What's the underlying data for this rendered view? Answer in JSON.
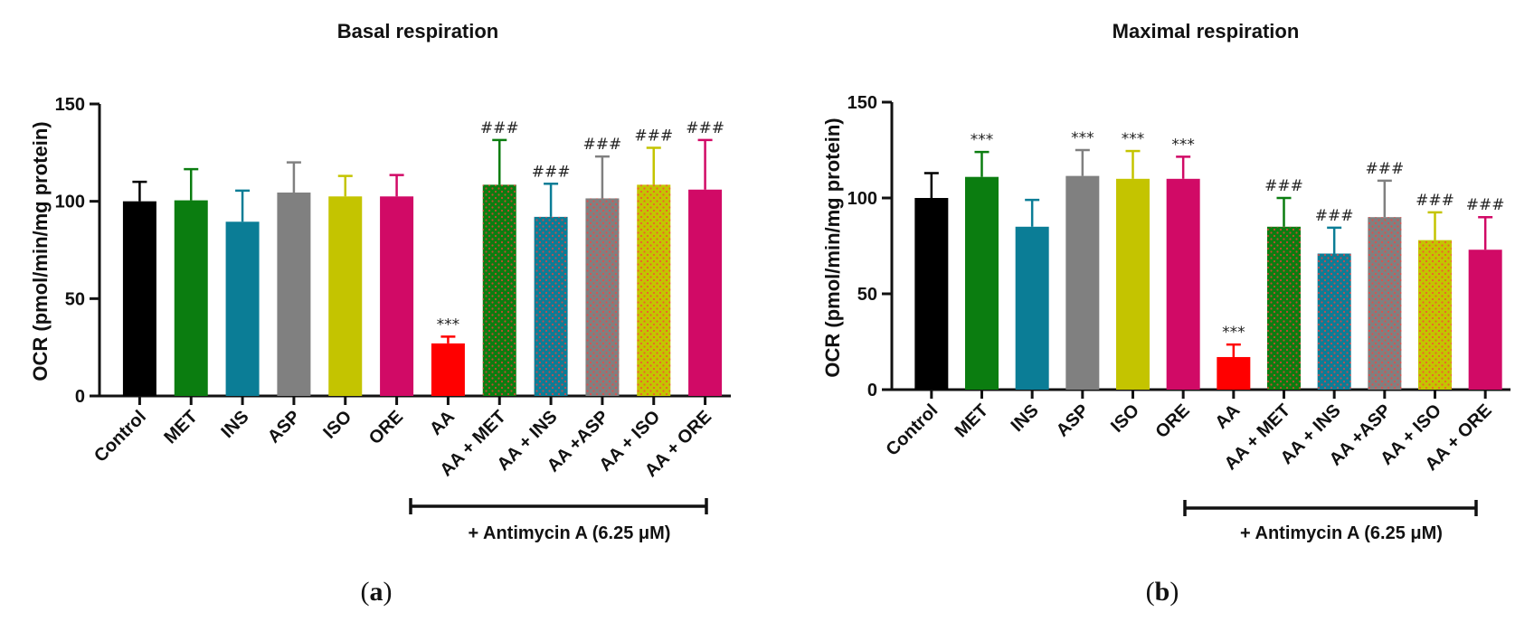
{
  "chart_data": [
    {
      "type": "bar",
      "title": "Basal respiration",
      "panel_label": "(a)",
      "panel_open": "(",
      "panel_letter": "a",
      "panel_close": ")",
      "ylabel": "OCR (pmol/min/mg protein)",
      "ylim": [
        0,
        150
      ],
      "yticks": [
        0,
        50,
        100,
        150
      ],
      "categories": [
        "Control",
        "MET",
        "INS",
        "ASP",
        "ISO",
        "ORE",
        "AA",
        "AA + MET",
        "AA + INS",
        "AA +ASP",
        "AA + ISO",
        "AA + ORE"
      ],
      "values": [
        100,
        100.5,
        89.5,
        104.5,
        102.5,
        102.5,
        27,
        108.5,
        92,
        101.5,
        108.5,
        106
      ],
      "errors": [
        10,
        16,
        16,
        15.5,
        10.5,
        11,
        3.5,
        23,
        17,
        21.5,
        19,
        25.5
      ],
      "colors": [
        "#000000",
        "#0b7d10",
        "#0b7d96",
        "#808080",
        "#c4c400",
        "#d10a66",
        "#ff0000",
        "#0b7d10",
        "#0b7d96",
        "#808080",
        "#c4c400",
        "#d10a66"
      ],
      "patterned": [
        false,
        false,
        false,
        false,
        false,
        false,
        false,
        true,
        true,
        true,
        true,
        false
      ],
      "significance": [
        "",
        "",
        "",
        "",
        "",
        "",
        "***",
        "###",
        "###",
        "###",
        "###",
        "###"
      ],
      "bracket": {
        "label": "+ Antimycin A (6.25 μM)",
        "from": 6,
        "to": 11
      }
    },
    {
      "type": "bar",
      "title": "Maximal respiration",
      "panel_label": "(b)",
      "panel_open": "(",
      "panel_letter": "b",
      "panel_close": ")",
      "ylabel": "OCR (pmol/min/mg protein)",
      "ylim": [
        0,
        150
      ],
      "yticks": [
        0,
        50,
        100,
        150
      ],
      "categories": [
        "Control",
        "MET",
        "INS",
        "ASP",
        "ISO",
        "ORE",
        "AA",
        "AA + MET",
        "AA + INS",
        "AA +ASP",
        "AA + ISO",
        "AA + ORE"
      ],
      "values": [
        100,
        111,
        85,
        111.5,
        110,
        110,
        17,
        85,
        71,
        90,
        78,
        73
      ],
      "errors": [
        13,
        13,
        14,
        13.5,
        14.5,
        11.5,
        6.5,
        15,
        13.5,
        19,
        14.5,
        17
      ],
      "colors": [
        "#000000",
        "#0b7d10",
        "#0b7d96",
        "#808080",
        "#c4c400",
        "#d10a66",
        "#ff0000",
        "#0b7d10",
        "#0b7d96",
        "#808080",
        "#c4c400",
        "#d10a66"
      ],
      "patterned": [
        false,
        false,
        false,
        false,
        false,
        false,
        false,
        true,
        true,
        true,
        true,
        false
      ],
      "significance": [
        "",
        "***",
        "",
        "***",
        "***",
        "***",
        "***",
        "###",
        "###",
        "###",
        "###",
        "###"
      ],
      "bracket": {
        "label": "+ Antimycin A (6.25 μM)",
        "from": 6,
        "to": 11
      }
    }
  ]
}
